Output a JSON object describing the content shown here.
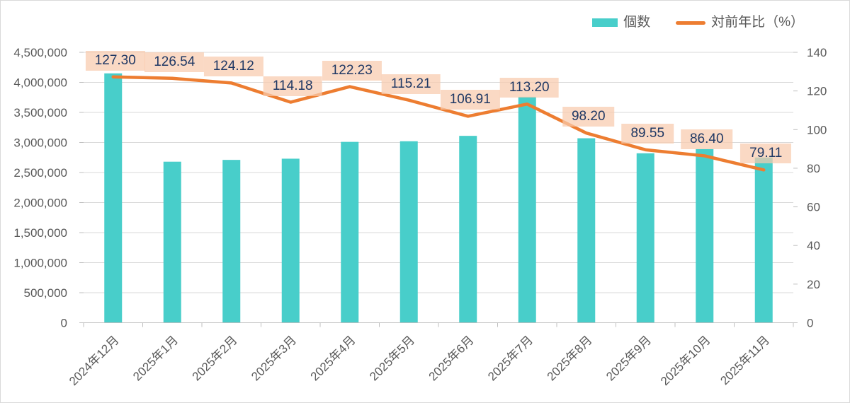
{
  "chart_data": {
    "type": "bar",
    "subtype": "combo-bar-line",
    "title": "",
    "categories": [
      "2024年12月",
      "2025年1月",
      "2025年2月",
      "2025年3月",
      "2025年4月",
      "2025年5月",
      "2025年6月",
      "2025年7月",
      "2025年8月",
      "2025年9月",
      "2025年10月",
      "2025年11月"
    ],
    "series": [
      {
        "name": "個数",
        "type": "bar",
        "axis": "left",
        "values": [
          4150000,
          2680000,
          2710000,
          2730000,
          3010000,
          3020000,
          3110000,
          3760000,
          3070000,
          2820000,
          2890000,
          2750000
        ]
      },
      {
        "name": "対前年比（%）",
        "type": "line",
        "axis": "right",
        "values": [
          127.3,
          126.54,
          124.12,
          114.18,
          122.23,
          115.21,
          106.91,
          113.2,
          98.2,
          89.55,
          86.4,
          79.11
        ],
        "point_labels": [
          "127.30",
          "126.54",
          "124.12",
          "114.18",
          "122.23",
          "115.21",
          "106.91",
          "113.20",
          "98.20",
          "89.55",
          "86.40",
          "79.11"
        ]
      }
    ],
    "axes": {
      "left": {
        "min": 0,
        "max": 4500000,
        "step": 500000,
        "tick_labels": [
          "0",
          "500,000",
          "1,000,000",
          "1,500,000",
          "2,000,000",
          "2,500,000",
          "3,000,000",
          "3,500,000",
          "4,000,000",
          "4,500,000"
        ]
      },
      "right": {
        "min": 0,
        "max": 140,
        "step": 20,
        "tick_labels": [
          "0",
          "20",
          "40",
          "60",
          "80",
          "100",
          "120",
          "140"
        ]
      }
    },
    "legend": {
      "position": "top-right",
      "items": [
        {
          "label": "個数",
          "marker": "bar"
        },
        {
          "label": "対前年比（%）",
          "marker": "line"
        }
      ]
    },
    "grid": true,
    "colors": {
      "bar": "#48CECA",
      "line": "#ED7D31",
      "data_label_bg": "#F8CBAD",
      "data_label_text": "#1F3864",
      "gridline": "#D9D9D9",
      "axis_line": "#BFBFBF",
      "tick_text": "#595959"
    }
  }
}
